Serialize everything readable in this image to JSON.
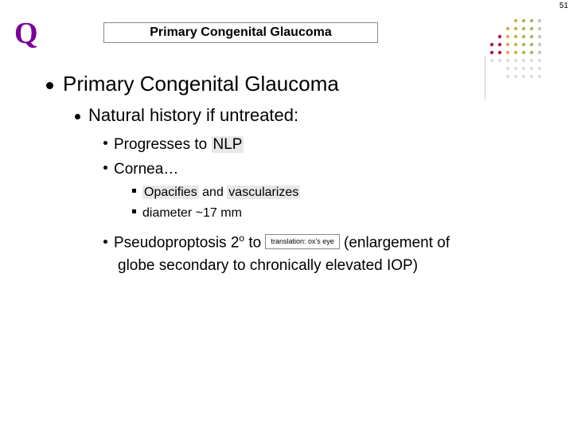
{
  "page_number": "51",
  "q_label": "Q",
  "title_box": "Primary Congenital Glaucoma",
  "section_title": "Primary Congenital Glaucoma",
  "subtitle": "Natural history if untreated:",
  "items": {
    "progresses_prefix": "Progresses to ",
    "progresses_hl": "NLP",
    "cornea": "Cornea…",
    "opac_hl1": "Opacifies",
    "opac_mid": " and ",
    "opac_hl2": "vascularizes",
    "diameter": "diameter ~17 mm",
    "pseudo_prefix": "Pseudoproptosis 2",
    "pseudo_sup": "o",
    "pseudo_to": " to ",
    "translation_label": "translation: ox's eye",
    "pseudo_suffix1": " (enlargement of",
    "pseudo_line2": "globe secondary to chronically elevated IOP)"
  },
  "deco_colors": {
    "c1": "#a6003d",
    "c2": "#d4a33e",
    "c3": "#9db24e",
    "c4": "#c0c0c0"
  }
}
